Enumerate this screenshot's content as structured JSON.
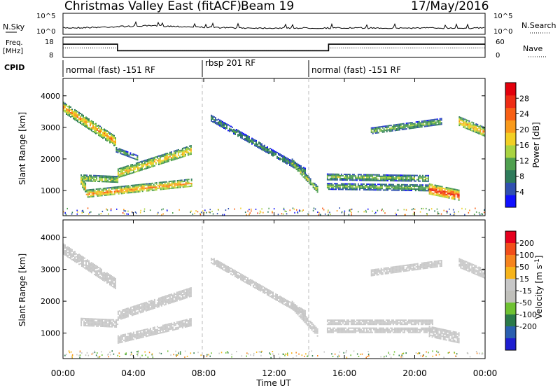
{
  "header": {
    "title": "Christmas Valley East (fitACF)",
    "beam": "Beam 19",
    "date": "17/May/2016"
  },
  "ops_panel": {
    "left_labels": {
      "nsky": "N.Sky",
      "freq_line1": "Freq.",
      "freq_line2": "[MHz]",
      "cpid": "CPID"
    },
    "right_labels": {
      "nsearch": "N.Search",
      "nave": "Nave"
    },
    "noise_ticks_left": [
      "10^5",
      "10^0"
    ],
    "noise_ticks_right": [
      "10^5",
      "10^0"
    ],
    "freq_ticks": [
      "18",
      "8"
    ],
    "nave_ticks": [
      "60",
      "0"
    ],
    "cpid_segments": [
      {
        "label": "normal (fast) -151 RF",
        "start_hour": 0,
        "end_hour": 8
      },
      {
        "label": "rbsp 201 RF",
        "start_hour": 8,
        "end_hour": 14
      },
      {
        "label": "normal (fast) -151 RF",
        "start_hour": 14,
        "end_hour": 24
      }
    ],
    "freq_trace": [
      {
        "start_hour": 0,
        "end_hour": 3.1,
        "freq_mhz": 14.5
      },
      {
        "start_hour": 3.1,
        "end_hour": 15.1,
        "freq_mhz": 10.3
      },
      {
        "start_hour": 15.1,
        "end_hour": 24,
        "freq_mhz": 14.5
      }
    ],
    "nave_trace": [
      {
        "start_hour": 0,
        "end_hour": 3.1,
        "nave": 28
      },
      {
        "start_hour": 3.1,
        "end_hour": 15.1,
        "nave": 20
      },
      {
        "start_hour": 15.1,
        "end_hour": 24,
        "nave": 28
      }
    ]
  },
  "colors": {
    "power_scale": [
      "#1010ff",
      "#3050b0",
      "#2e7b5b",
      "#4fa04f",
      "#a9d341",
      "#f2cf24",
      "#f99a1b",
      "#f85f14",
      "#ee2c14",
      "#e3000c"
    ],
    "velocity_scale": [
      "#1e1ed0",
      "#2a5fb0",
      "#2b7a4a",
      "#6fc232",
      "#c0c0bb",
      "#c7c7c7",
      "#f6b41b",
      "#f6841e",
      "#f24e1a",
      "#e6001e"
    ],
    "ground_scatter": "#c7c7c7"
  },
  "chart_data": [
    {
      "type": "heatmap",
      "panel": "power",
      "title": "",
      "xlabel": "Time UT",
      "ylabel": "Slant Range [km]",
      "colorbar_label": "Power [dB]",
      "colorbar_ticks": [
        "4",
        "8",
        "12",
        "16",
        "20",
        "24",
        "28"
      ],
      "colorbar_range": [
        0,
        32
      ],
      "xlim": [
        0,
        24
      ],
      "ylim": [
        200,
        4550
      ],
      "x_ticks": [
        "00:00",
        "04:00",
        "08:00",
        "12:00",
        "16:00",
        "20:00",
        "00:00"
      ],
      "y_ticks": [
        "1000",
        "2000",
        "3000",
        "4000"
      ],
      "echo_bands": [
        {
          "start_hour": 0.0,
          "end_hour": 3.0,
          "range_start_km": 3650,
          "range_end_km": 2550,
          "thickness_km": 320,
          "power_db": 22
        },
        {
          "start_hour": 1.0,
          "end_hour": 1.3,
          "range_start_km": 1300,
          "range_end_km": 1050,
          "thickness_km": 300,
          "power_db": 19
        },
        {
          "start_hour": 1.3,
          "end_hour": 7.3,
          "range_start_km": 900,
          "range_end_km": 1250,
          "thickness_km": 260,
          "power_db": 22
        },
        {
          "start_hour": 1.0,
          "end_hour": 3.1,
          "range_start_km": 1400,
          "range_end_km": 1350,
          "thickness_km": 220,
          "power_db": 16
        },
        {
          "start_hour": 3.1,
          "end_hour": 7.3,
          "range_start_km": 1550,
          "range_end_km": 2300,
          "thickness_km": 300,
          "power_db": 20
        },
        {
          "start_hour": 3.0,
          "end_hour": 4.2,
          "range_start_km": 2300,
          "range_end_km": 2050,
          "thickness_km": 150,
          "power_db": 12
        },
        {
          "start_hour": 8.4,
          "end_hour": 13.8,
          "range_start_km": 3300,
          "range_end_km": 1600,
          "thickness_km": 200,
          "power_db": 10
        },
        {
          "start_hour": 13.0,
          "end_hour": 14.5,
          "range_start_km": 1900,
          "range_end_km": 1000,
          "thickness_km": 220,
          "power_db": 16
        },
        {
          "start_hour": 15.0,
          "end_hour": 20.8,
          "range_start_km": 1450,
          "range_end_km": 1400,
          "thickness_km": 180,
          "power_db": 14
        },
        {
          "start_hour": 15.0,
          "end_hour": 20.8,
          "range_start_km": 1150,
          "range_end_km": 1100,
          "thickness_km": 180,
          "power_db": 13
        },
        {
          "start_hour": 20.8,
          "end_hour": 22.5,
          "range_start_km": 1050,
          "range_end_km": 850,
          "thickness_km": 350,
          "power_db": 28
        },
        {
          "start_hour": 17.5,
          "end_hour": 21.5,
          "range_start_km": 2900,
          "range_end_km": 3200,
          "thickness_km": 200,
          "power_db": 13
        },
        {
          "start_hour": 22.5,
          "end_hour": 24.0,
          "range_start_km": 3200,
          "range_end_km": 2850,
          "thickness_km": 300,
          "power_db": 21
        }
      ]
    },
    {
      "type": "heatmap",
      "panel": "velocity",
      "title": "",
      "xlabel": "Time UT",
      "ylabel": "Slant Range [km]",
      "colorbar_label": "Velocity [m s^-1]",
      "colorbar_ticks": [
        "-200",
        "-100",
        "-50",
        "-15",
        "15",
        "50",
        "100",
        "200"
      ],
      "colorbar_range": [
        -250,
        250
      ],
      "xlim": [
        0,
        24
      ],
      "ylim": [
        200,
        4550
      ],
      "x_ticks": [
        "00:00",
        "04:00",
        "08:00",
        "12:00",
        "16:00",
        "20:00",
        "00:00"
      ],
      "y_ticks": [
        "1000",
        "2000",
        "3000",
        "4000"
      ],
      "echo_bands": [
        {
          "start_hour": 0.0,
          "end_hour": 3.0,
          "range_start_km": 3650,
          "range_end_km": 2550,
          "thickness_km": 320,
          "velocity_ms": 0
        },
        {
          "start_hour": 1.0,
          "end_hour": 3.1,
          "range_start_km": 1350,
          "range_end_km": 1300,
          "thickness_km": 260,
          "velocity_ms": 0
        },
        {
          "start_hour": 3.1,
          "end_hour": 7.3,
          "range_start_km": 800,
          "range_end_km": 1350,
          "thickness_km": 260,
          "velocity_ms": 40
        },
        {
          "start_hour": 3.1,
          "end_hour": 7.3,
          "range_start_km": 1550,
          "range_end_km": 2300,
          "thickness_km": 300,
          "velocity_ms": 0
        },
        {
          "start_hour": 8.4,
          "end_hour": 13.8,
          "range_start_km": 3300,
          "range_end_km": 1600,
          "thickness_km": 200,
          "velocity_ms": 0
        },
        {
          "start_hour": 13.0,
          "end_hour": 14.5,
          "range_start_km": 1900,
          "range_end_km": 1000,
          "thickness_km": 220,
          "velocity_ms": 0
        },
        {
          "start_hour": 15.0,
          "end_hour": 21.0,
          "range_start_km": 1350,
          "range_end_km": 1350,
          "thickness_km": 150,
          "velocity_ms": 0
        },
        {
          "start_hour": 15.0,
          "end_hour": 21.0,
          "range_start_km": 1100,
          "range_end_km": 1100,
          "thickness_km": 150,
          "velocity_ms": 0
        },
        {
          "start_hour": 20.8,
          "end_hour": 22.5,
          "range_start_km": 1050,
          "range_end_km": 850,
          "thickness_km": 350,
          "velocity_ms": 0
        },
        {
          "start_hour": 17.5,
          "end_hour": 21.5,
          "range_start_km": 2900,
          "range_end_km": 3200,
          "thickness_km": 200,
          "velocity_ms": 0
        },
        {
          "start_hour": 22.5,
          "end_hour": 24.0,
          "range_start_km": 3200,
          "range_end_km": 2850,
          "thickness_km": 300,
          "velocity_ms": 0
        }
      ]
    }
  ]
}
